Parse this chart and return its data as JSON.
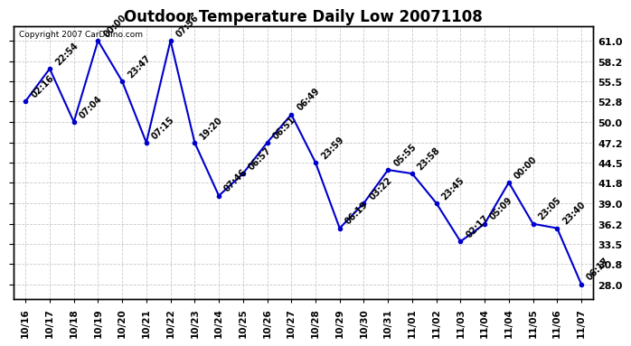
{
  "title": "Outdoor Temperature Daily Low 20071108",
  "copyright_text": "Copyright 2007 CarDuino.com",
  "line_color": "#0000cc",
  "marker_color": "#0000cc",
  "background_color": "#ffffff",
  "grid_color": "#bbbbbb",
  "x_labels": [
    "10/16",
    "10/17",
    "10/18",
    "10/19",
    "10/20",
    "10/21",
    "10/22",
    "10/23",
    "10/24",
    "10/25",
    "10/26",
    "10/27",
    "10/28",
    "10/29",
    "10/30",
    "10/31",
    "11/01",
    "11/02",
    "11/03",
    "11/04",
    "11/04",
    "11/05",
    "11/06",
    "11/07"
  ],
  "y_values": [
    52.8,
    57.2,
    50.0,
    61.0,
    55.5,
    47.2,
    61.0,
    47.2,
    40.0,
    43.0,
    47.2,
    51.0,
    44.5,
    35.6,
    39.0,
    43.5,
    43.0,
    39.0,
    33.8,
    36.2,
    41.8,
    36.2,
    35.6,
    28.0
  ],
  "annotations": [
    "02:16",
    "22:54",
    "07:04",
    "00:00",
    "23:47",
    "07:15",
    "07:56",
    "19:20",
    "07:46",
    "06:57",
    "06:51",
    "06:49",
    "23:59",
    "06:19",
    "03:22",
    "05:55",
    "23:58",
    "23:45",
    "02:17",
    "05:09",
    "00:00",
    "23:05",
    "23:40",
    "06:17"
  ],
  "ylim": [
    26.0,
    63.0
  ],
  "yticks": [
    28.0,
    30.8,
    33.5,
    36.2,
    39.0,
    41.8,
    44.5,
    47.2,
    50.0,
    52.8,
    55.5,
    58.2,
    61.0
  ],
  "title_fontsize": 12,
  "annotation_fontsize": 7,
  "fig_width": 6.9,
  "fig_height": 3.75,
  "dpi": 100
}
